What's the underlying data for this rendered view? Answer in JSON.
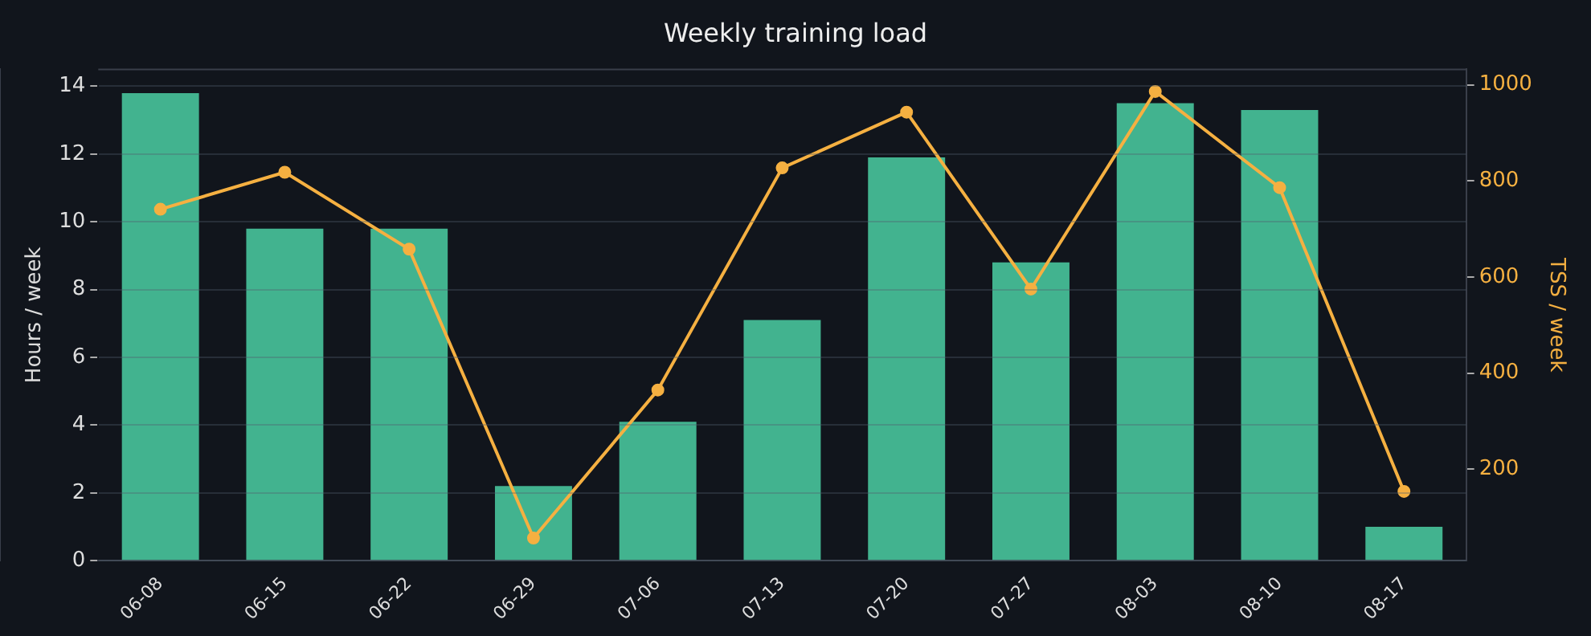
{
  "chart_data": {
    "type": "bar",
    "title": "Weekly training load",
    "ylabel": "Hours / week",
    "y2label": "TSS / week",
    "categories": [
      "06-08",
      "06-15",
      "06-22",
      "06-29",
      "07-06",
      "07-13",
      "07-20",
      "07-27",
      "08-03",
      "08-10",
      "08-17"
    ],
    "series": [
      {
        "color": "#42b38f",
        "values": [
          13.8,
          9.8,
          9.8,
          2.2,
          4.1,
          7.1,
          11.9,
          8.8,
          13.5,
          13.3,
          1.0
        ]
      },
      {
        "type": "line",
        "axis": "y2",
        "color": "#f5b041",
        "values": [
          741,
          818,
          658,
          57,
          365,
          827,
          943,
          575,
          986,
          786,
          154
        ]
      }
    ],
    "ylim": [
      0,
      14.5
    ],
    "yticks": [
      0,
      2,
      4,
      6,
      8,
      10,
      12,
      14
    ],
    "y2lim": [
      10,
      1032
    ],
    "y2ticks": [
      200,
      400,
      600,
      800,
      1000
    ],
    "grid": "y",
    "legend": false,
    "marker": "circle",
    "line_style": "solid"
  }
}
